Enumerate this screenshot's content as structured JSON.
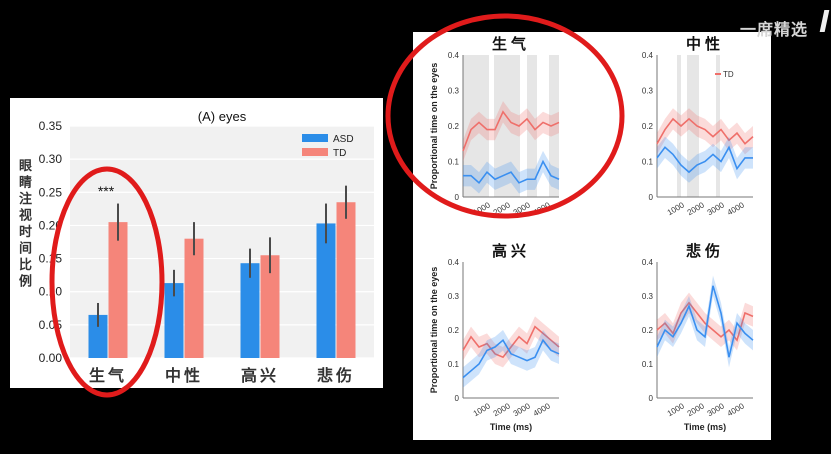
{
  "watermark": "一席精选",
  "left_chart": {
    "title": "(A) eyes",
    "ylabel": "眼睛注视时间比例",
    "significance": "***",
    "legend": [
      "ASD",
      "TD"
    ],
    "colors": {
      "ASD": "#2b8de8",
      "TD": "#f5857a"
    }
  },
  "chart_data": [
    {
      "type": "bar",
      "title": "(A) eyes",
      "categories": [
        "生气",
        "中性",
        "高兴",
        "悲伤"
      ],
      "ylabel": "眼睛注视时间比例",
      "ylim": [
        0,
        0.35
      ],
      "yticks": [
        "0.00",
        "0.05",
        "0.10",
        "0.15",
        "0.20",
        "0.25",
        "0.30",
        "0.35"
      ],
      "legend_position": "top-right",
      "grid": true,
      "series": [
        {
          "name": "ASD",
          "values": [
            0.065,
            0.113,
            0.143,
            0.203
          ],
          "errors": [
            0.018,
            0.02,
            0.022,
            0.03
          ]
        },
        {
          "name": "TD",
          "values": [
            0.205,
            0.18,
            0.155,
            0.235
          ],
          "errors": [
            0.028,
            0.025,
            0.027,
            0.025
          ]
        }
      ]
    },
    {
      "type": "line",
      "title": "生气",
      "ylabel": "Proportional time on the eyes",
      "ylim": [
        0,
        0.4
      ],
      "xticks": [
        "1000",
        "2000",
        "3000",
        "4000"
      ],
      "yticks": [
        "0",
        "0.1",
        "0.2",
        "0.3",
        "0.4"
      ],
      "shaded_regions": [
        [
          0,
          1300
        ],
        [
          1550,
          2850
        ],
        [
          3200,
          3700
        ],
        [
          4300,
          4800
        ]
      ],
      "series": [
        {
          "name": "TD",
          "x": [
            0,
            400,
            800,
            1200,
            1600,
            2000,
            2400,
            2800,
            3200,
            3600,
            4000,
            4400,
            4800
          ],
          "y": [
            0.13,
            0.19,
            0.21,
            0.19,
            0.19,
            0.24,
            0.21,
            0.2,
            0.22,
            0.19,
            0.21,
            0.2,
            0.21
          ]
        },
        {
          "name": "ASD",
          "x": [
            0,
            400,
            800,
            1200,
            1600,
            2000,
            2400,
            2800,
            3200,
            3600,
            4000,
            4400,
            4800
          ],
          "y": [
            0.06,
            0.06,
            0.04,
            0.07,
            0.05,
            0.06,
            0.07,
            0.04,
            0.05,
            0.05,
            0.1,
            0.06,
            0.05
          ]
        }
      ]
    },
    {
      "type": "line",
      "title": "中性",
      "legend": [
        "TD"
      ],
      "ylim": [
        0,
        0.4
      ],
      "xticks": [
        "1000",
        "2000",
        "3000",
        "4000"
      ],
      "yticks": [
        "0",
        "0.1",
        "0.2",
        "0.3",
        "0.4"
      ],
      "shaded_regions": [
        [
          1000,
          1200
        ],
        [
          1500,
          2100
        ],
        [
          2950,
          3150
        ]
      ],
      "series": [
        {
          "name": "TD",
          "x": [
            0,
            400,
            800,
            1200,
            1600,
            2000,
            2400,
            2800,
            3200,
            3600,
            4000,
            4400,
            4800
          ],
          "y": [
            0.15,
            0.19,
            0.22,
            0.2,
            0.22,
            0.2,
            0.19,
            0.17,
            0.19,
            0.16,
            0.18,
            0.15,
            0.17
          ]
        },
        {
          "name": "ASD",
          "x": [
            0,
            400,
            800,
            1200,
            1600,
            2000,
            2400,
            2800,
            3200,
            3600,
            4000,
            4400,
            4800
          ],
          "y": [
            0.11,
            0.14,
            0.12,
            0.09,
            0.07,
            0.09,
            0.1,
            0.12,
            0.1,
            0.14,
            0.08,
            0.11,
            0.11
          ]
        }
      ]
    },
    {
      "type": "line",
      "title": "高兴",
      "ylabel": "Proportional time on the eyes",
      "xlabel": "Time (ms)",
      "ylim": [
        0,
        0.4
      ],
      "xticks": [
        "1000",
        "2000",
        "3000",
        "4000"
      ],
      "yticks": [
        "0",
        "0.1",
        "0.2",
        "0.3",
        "0.4"
      ],
      "series": [
        {
          "name": "TD",
          "x": [
            0,
            400,
            800,
            1200,
            1600,
            2000,
            2400,
            2800,
            3200,
            3600,
            4000,
            4400,
            4800
          ],
          "y": [
            0.14,
            0.18,
            0.15,
            0.16,
            0.13,
            0.12,
            0.15,
            0.18,
            0.16,
            0.21,
            0.19,
            0.17,
            0.15
          ]
        },
        {
          "name": "ASD",
          "x": [
            0,
            400,
            800,
            1200,
            1600,
            2000,
            2400,
            2800,
            3200,
            3600,
            4000,
            4400,
            4800
          ],
          "y": [
            0.06,
            0.08,
            0.1,
            0.14,
            0.15,
            0.17,
            0.13,
            0.12,
            0.11,
            0.12,
            0.17,
            0.14,
            0.13
          ]
        }
      ]
    },
    {
      "type": "line",
      "title": "悲伤",
      "xlabel": "Time (ms)",
      "ylim": [
        0,
        0.4
      ],
      "xticks": [
        "1000",
        "2000",
        "3000",
        "4000"
      ],
      "yticks": [
        "0",
        "0.1",
        "0.2",
        "0.3",
        "0.4"
      ],
      "series": [
        {
          "name": "TD",
          "x": [
            0,
            400,
            800,
            1200,
            1600,
            2000,
            2400,
            2800,
            3200,
            3600,
            4000,
            4400,
            4800
          ],
          "y": [
            0.2,
            0.22,
            0.19,
            0.25,
            0.28,
            0.25,
            0.22,
            0.2,
            0.18,
            0.2,
            0.17,
            0.25,
            0.24
          ]
        },
        {
          "name": "ASD",
          "x": [
            0,
            400,
            800,
            1200,
            1600,
            2000,
            2400,
            2800,
            3200,
            3600,
            4000,
            4400,
            4800
          ],
          "y": [
            0.15,
            0.2,
            0.18,
            0.22,
            0.27,
            0.2,
            0.18,
            0.33,
            0.25,
            0.12,
            0.22,
            0.19,
            0.17
          ]
        }
      ]
    }
  ]
}
